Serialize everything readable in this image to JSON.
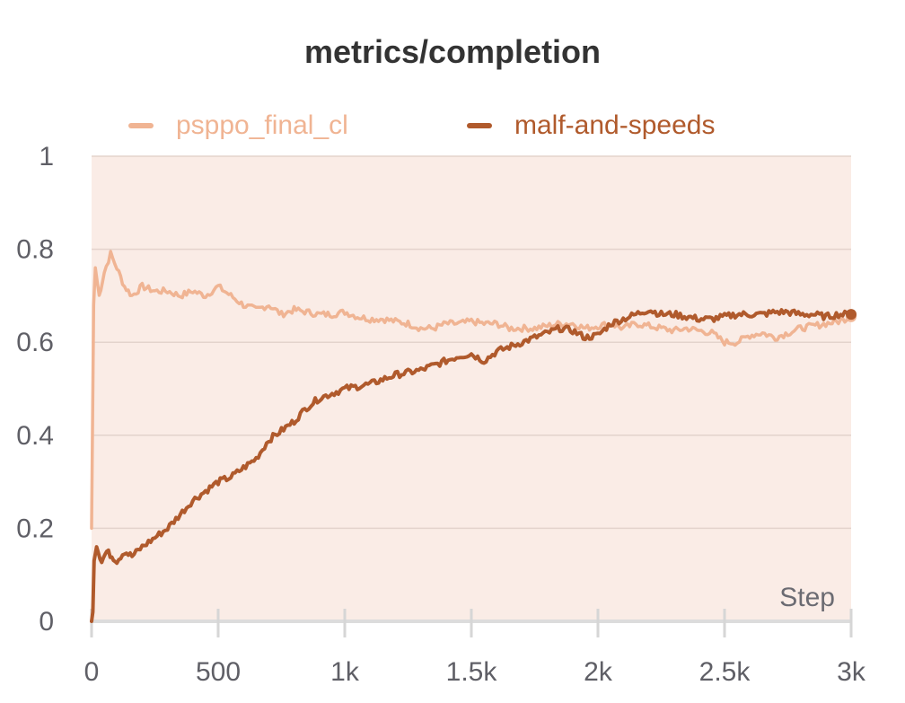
{
  "chart_data": {
    "type": "line",
    "title": "metrics/completion",
    "xlabel": "Step",
    "ylabel": "",
    "xlim": [
      0,
      3000
    ],
    "ylim": [
      0,
      1
    ],
    "x_ticks": [
      0,
      500,
      1000,
      1500,
      2000,
      2500,
      3000
    ],
    "x_tick_labels": [
      "0",
      "500",
      "1k",
      "1.5k",
      "2k",
      "2.5k",
      "3k"
    ],
    "y_ticks": [
      0,
      0.2,
      0.4,
      0.6,
      0.8,
      1
    ],
    "y_tick_labels": [
      "0",
      "0.2",
      "0.4",
      "0.6",
      "0.8",
      "1"
    ],
    "grid": true,
    "legend_position": "top",
    "series": [
      {
        "name": "psppo_final_cl",
        "color": "#f0b493",
        "x": [
          0,
          8,
          15,
          30,
          50,
          75,
          100,
          130,
          160,
          200,
          250,
          300,
          350,
          400,
          450,
          500,
          550,
          600,
          650,
          700,
          750,
          800,
          850,
          900,
          950,
          1000,
          1050,
          1100,
          1150,
          1200,
          1250,
          1300,
          1350,
          1400,
          1450,
          1500,
          1550,
          1600,
          1650,
          1700,
          1750,
          1800,
          1850,
          1900,
          1950,
          2000,
          2050,
          2100,
          2150,
          2200,
          2250,
          2300,
          2350,
          2400,
          2450,
          2500,
          2550,
          2600,
          2650,
          2700,
          2750,
          2800,
          2850,
          2900,
          2950,
          3000
        ],
        "values": [
          0.2,
          0.68,
          0.76,
          0.7,
          0.75,
          0.79,
          0.76,
          0.72,
          0.7,
          0.72,
          0.71,
          0.71,
          0.7,
          0.71,
          0.7,
          0.72,
          0.7,
          0.68,
          0.67,
          0.68,
          0.66,
          0.67,
          0.665,
          0.66,
          0.66,
          0.665,
          0.655,
          0.65,
          0.65,
          0.645,
          0.64,
          0.63,
          0.63,
          0.64,
          0.64,
          0.645,
          0.64,
          0.64,
          0.63,
          0.63,
          0.63,
          0.635,
          0.64,
          0.64,
          0.63,
          0.635,
          0.64,
          0.63,
          0.64,
          0.635,
          0.63,
          0.625,
          0.63,
          0.625,
          0.62,
          0.6,
          0.6,
          0.615,
          0.62,
          0.61,
          0.62,
          0.63,
          0.635,
          0.64,
          0.645,
          0.655
        ]
      },
      {
        "name": "malf-and-speeds",
        "color": "#b05a2c",
        "x": [
          0,
          5,
          10,
          20,
          40,
          60,
          80,
          100,
          130,
          160,
          200,
          250,
          300,
          350,
          400,
          450,
          500,
          550,
          600,
          650,
          700,
          750,
          800,
          850,
          900,
          950,
          1000,
          1050,
          1100,
          1150,
          1200,
          1250,
          1300,
          1350,
          1400,
          1450,
          1500,
          1550,
          1600,
          1650,
          1700,
          1750,
          1800,
          1850,
          1900,
          1950,
          2000,
          2050,
          2100,
          2150,
          2200,
          2250,
          2300,
          2350,
          2400,
          2450,
          2500,
          2550,
          2600,
          2650,
          2700,
          2750,
          2800,
          2850,
          2900,
          2950,
          3000
        ],
        "values": [
          0.0,
          0.02,
          0.13,
          0.16,
          0.13,
          0.15,
          0.14,
          0.13,
          0.15,
          0.14,
          0.16,
          0.18,
          0.2,
          0.23,
          0.26,
          0.28,
          0.3,
          0.31,
          0.33,
          0.35,
          0.39,
          0.41,
          0.43,
          0.46,
          0.48,
          0.49,
          0.5,
          0.505,
          0.51,
          0.52,
          0.53,
          0.535,
          0.54,
          0.55,
          0.56,
          0.57,
          0.575,
          0.56,
          0.58,
          0.59,
          0.6,
          0.61,
          0.62,
          0.63,
          0.625,
          0.61,
          0.615,
          0.64,
          0.65,
          0.66,
          0.67,
          0.66,
          0.66,
          0.655,
          0.65,
          0.65,
          0.655,
          0.66,
          0.66,
          0.66,
          0.665,
          0.665,
          0.66,
          0.66,
          0.655,
          0.66,
          0.66
        ]
      }
    ]
  }
}
